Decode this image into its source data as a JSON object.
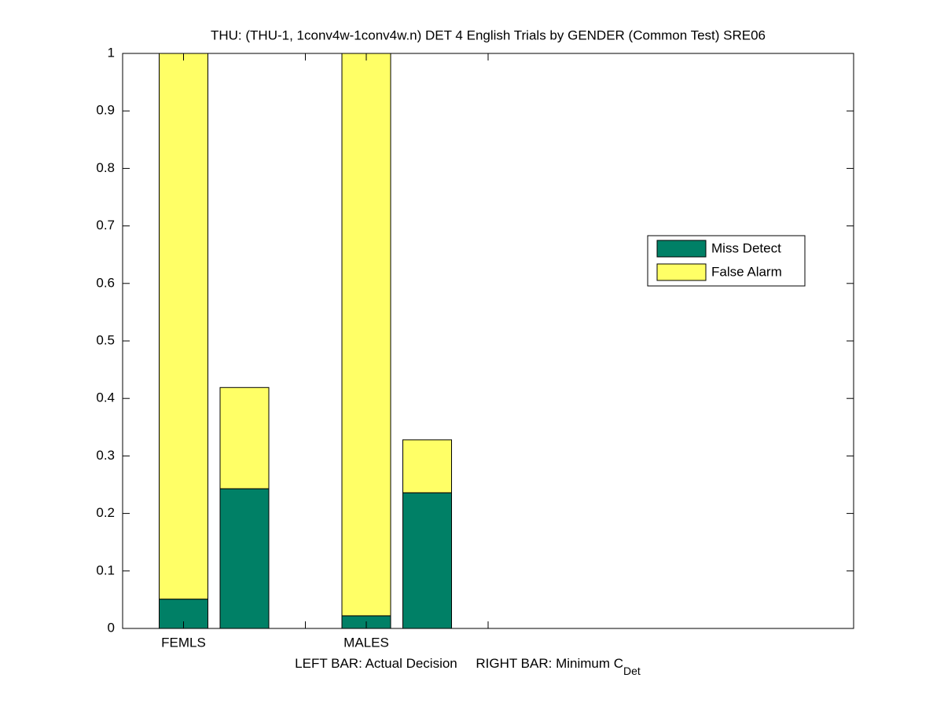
{
  "chart_data": {
    "type": "stacked_bar",
    "title": "THU: (THU-1, 1conv4w-1conv4w.n) DET 4 English Trials by GENDER (Common Test) SRE06",
    "xlabel": "LEFT BAR: Actual Decision     RIGHT BAR: Minimum C",
    "xlabel_subscript": "Det",
    "x": [
      1,
      2,
      4,
      5
    ],
    "bar_width": 0.8,
    "series": [
      {
        "name": "Miss Detect",
        "color": "#008066",
        "values": [
          0.051,
          0.243,
          0.022,
          0.236
        ]
      },
      {
        "name": "False Alarm",
        "color": "#ffff66",
        "values": [
          0.949,
          0.176,
          0.978,
          0.092
        ]
      }
    ],
    "xlim": [
      0,
      12
    ],
    "xticks": [
      {
        "value": 1,
        "label": "FEMLS"
      },
      {
        "value": 3,
        "label": null
      },
      {
        "value": 4,
        "label": "MALES"
      },
      {
        "value": 6,
        "label": null
      }
    ],
    "ylim": [
      0,
      1
    ],
    "yticks": [
      0,
      0.1,
      0.2,
      0.3,
      0.4,
      0.5,
      0.6,
      0.7,
      0.8,
      0.9,
      1
    ],
    "grid": false,
    "legend_location": "east"
  }
}
